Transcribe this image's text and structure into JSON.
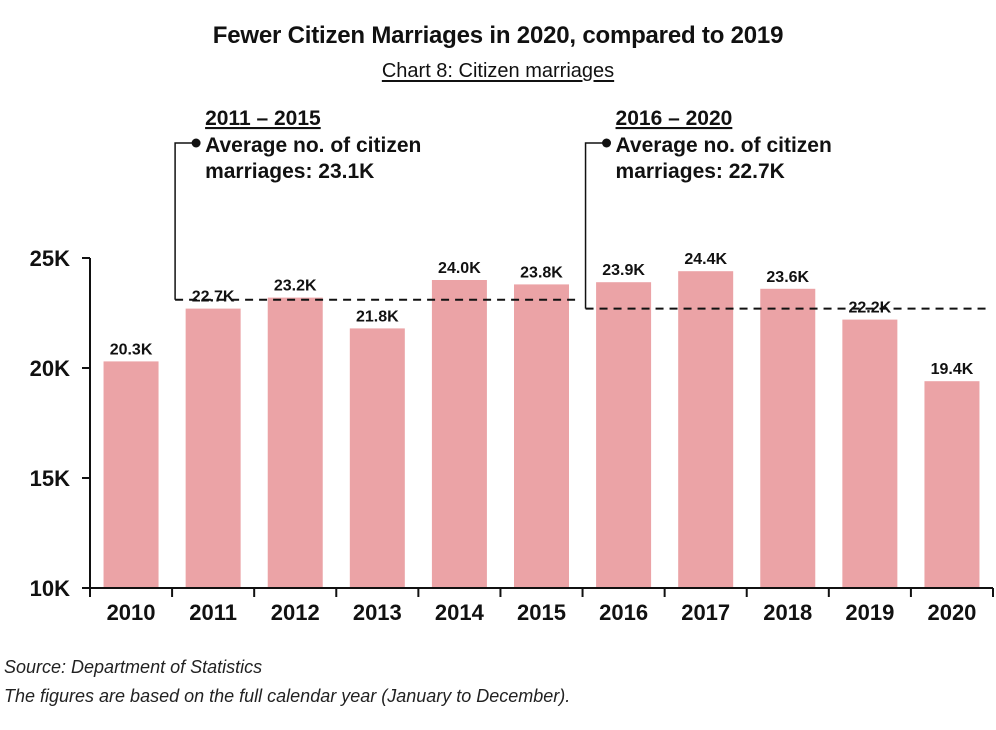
{
  "title": "Fewer Citizen Marriages in 2020, compared to 2019",
  "subtitle": "Chart 8: Citizen marriages",
  "source": "Source: Department of Statistics",
  "note": "The figures are based on the full calendar year (January to December).",
  "colors": {
    "bar": "#eba3a6",
    "text": "#111111",
    "axis": "#111111"
  },
  "chart_data": {
    "type": "bar",
    "categories": [
      "2010",
      "2011",
      "2012",
      "2013",
      "2014",
      "2015",
      "2016",
      "2017",
      "2018",
      "2019",
      "2020"
    ],
    "values": [
      20.3,
      22.7,
      23.2,
      21.8,
      24.0,
      23.8,
      23.9,
      24.4,
      23.6,
      22.2,
      19.4
    ],
    "data_labels": [
      "20.3K",
      "22.7K",
      "23.2K",
      "21.8K",
      "24.0K",
      "23.8K",
      "23.9K",
      "24.4K",
      "23.6K",
      "22.2K",
      "19.4K"
    ],
    "ylim": [
      10,
      25
    ],
    "yticks": [
      10,
      15,
      20,
      25
    ],
    "ytick_labels": [
      "10K",
      "15K",
      "20K",
      "25K"
    ],
    "grid": false,
    "annotations": [
      {
        "period": "2011 – 2015",
        "line1": "Average no. of citizen",
        "line2": "marriages: 23.1K",
        "average": 23.1,
        "from": "2011",
        "to": "2015"
      },
      {
        "period": "2016 – 2020",
        "line1": "Average no. of citizen",
        "line2": "marriages: 22.7K",
        "average": 22.7,
        "from": "2016",
        "to": "2020"
      }
    ]
  }
}
